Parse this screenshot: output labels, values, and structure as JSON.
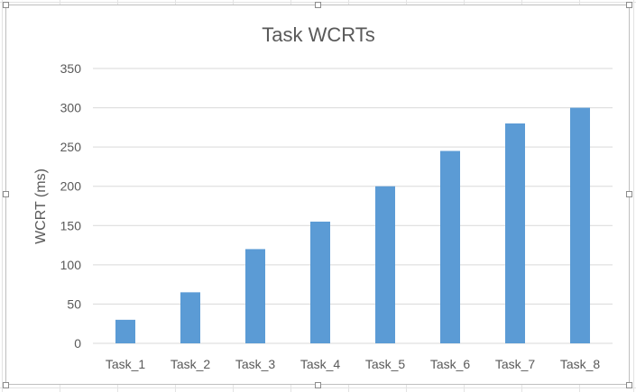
{
  "chart_data": {
    "type": "bar",
    "title": "Task WCRTs",
    "xlabel": "",
    "ylabel": "WCRT (ms)",
    "categories": [
      "Task_1",
      "Task_2",
      "Task_3",
      "Task_4",
      "Task_5",
      "Task_6",
      "Task_7",
      "Task_8"
    ],
    "values": [
      30,
      65,
      120,
      155,
      200,
      245,
      280,
      300
    ],
    "ylim": [
      0,
      350
    ],
    "yticks": [
      0,
      50,
      100,
      150,
      200,
      250,
      300,
      350
    ],
    "grid": true,
    "legend": "none",
    "bar_color": "#5b9bd5",
    "grid_color": "#d9d9d9",
    "text_color": "#595959"
  }
}
